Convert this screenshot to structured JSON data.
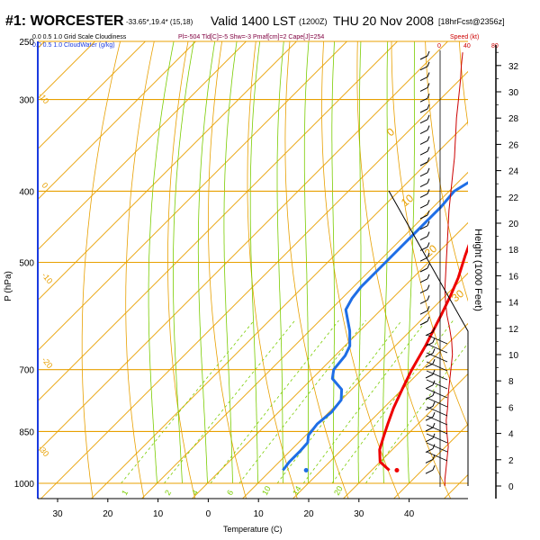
{
  "header": {
    "station": "#1: WORCESTER",
    "coords": "-33.65*,19.4* (15,18)",
    "valid": "Valid 1400 LST",
    "utc": "(1200Z)",
    "date": "THU 20 Nov 2008",
    "forecast": "[18hrFcst@2356z]",
    "cloud_row1": "0.0   0.5   1.0  Grid Scale Cloudiness",
    "cloud_row2": "0.0   0.5   1.0  CloudWater (g/kg)",
    "indices": "Pl=-504 Tld[C]=-5 Shw=-3 Pmaf[cm]=2 Cape[J]=254",
    "speed_title": "Speed (kt)",
    "speed_ticks": [
      "0",
      "40",
      "80"
    ]
  },
  "colors": {
    "isobar": "#e8a000",
    "temperature": "#ee0000",
    "dewpoint": "#1e6ee6",
    "parcel": "#800040",
    "dry_adiabat": "#b8c000",
    "moist_adiabat": "#7acc00",
    "mixing_ratio": "#7acc00",
    "wind_speed": "#cc0000"
  },
  "chart_data": {
    "type": "line",
    "title": "#1: WORCESTER",
    "xlabel": "Temperature (C)",
    "ylabel": "P (hPa)",
    "y2label": "Height (1000 Feet)",
    "x_ticks": [
      "30",
      "20",
      "10",
      "0",
      "10",
      "20",
      "30",
      "40"
    ],
    "p_ticks": [
      250,
      300,
      400,
      500,
      700,
      850,
      1000
    ],
    "height_ticks": [
      "0",
      "2",
      "4",
      "6",
      "8",
      "10",
      "12",
      "14",
      "16",
      "18",
      "20",
      "22",
      "24",
      "26",
      "28",
      "30",
      "32"
    ],
    "xlim": [
      -35,
      48
    ],
    "ylim": [
      1000,
      250
    ],
    "skew_deg": 45,
    "dry_adiabat_labels": [
      "0",
      "10",
      "20",
      "30"
    ],
    "temp_line_labels": [
      "-10",
      "0",
      "-10",
      "-20",
      "-30"
    ],
    "mixing_ratio_labels": [
      "1",
      "2",
      "4",
      "6",
      "10",
      "14",
      "20"
    ],
    "series": [
      {
        "name": "Temperature",
        "points": [
          [
            33.5,
            960
          ],
          [
            30,
            935
          ],
          [
            27.5,
            900
          ],
          [
            25.5,
            860
          ],
          [
            24,
            830
          ],
          [
            22,
            790
          ],
          [
            20,
            745
          ],
          [
            18,
            700
          ],
          [
            16,
            650
          ],
          [
            13,
            590
          ],
          [
            11,
            555
          ],
          [
            9,
            525
          ],
          [
            6,
            490
          ],
          [
            3,
            455
          ],
          [
            0,
            425
          ],
          [
            -3,
            400
          ],
          [
            -7,
            370
          ],
          [
            -11,
            340
          ],
          [
            -15,
            312
          ],
          [
            -19,
            287
          ],
          [
            -23,
            266
          ],
          [
            -25,
            262
          ]
        ]
      },
      {
        "name": "Dewpoint",
        "points": [
          [
            12.4,
            960
          ],
          [
            12,
            935
          ],
          [
            12,
            905
          ],
          [
            11.8,
            880
          ],
          [
            10.5,
            860
          ],
          [
            10,
            830
          ],
          [
            10.5,
            800
          ],
          [
            10,
            770
          ],
          [
            8,
            745
          ],
          [
            4,
            720
          ],
          [
            2.5,
            700
          ],
          [
            2,
            670
          ],
          [
            1,
            650
          ],
          [
            -2,
            620
          ],
          [
            -7,
            580
          ],
          [
            -8,
            560
          ],
          [
            -8.5,
            540
          ],
          [
            -8.5,
            500
          ],
          [
            -8.5,
            470
          ],
          [
            -8.5,
            430
          ],
          [
            -8.5,
            420
          ],
          [
            -9,
            400
          ],
          [
            -7,
            380
          ],
          [
            -3,
            360
          ],
          [
            -0.5,
            340
          ],
          [
            -2.5,
            320
          ],
          [
            -4.5,
            300
          ],
          [
            -6.5,
            280
          ],
          [
            -7,
            262
          ]
        ]
      },
      {
        "name": "Parcel",
        "points": [
          [
            3,
            455
          ],
          [
            0,
            420
          ],
          [
            -5,
            385
          ],
          [
            -9,
            350
          ],
          [
            -13,
            322
          ],
          [
            -17,
            298
          ],
          [
            -21,
            276
          ],
          [
            -24,
            262
          ]
        ]
      }
    ],
    "surface_markers": [
      {
        "name": "Temperature",
        "t": 35,
        "p": 960
      },
      {
        "name": "Dewpoint",
        "t": 17,
        "p": 960
      }
    ],
    "wind_speed_profile": [
      [
        7,
        0
      ],
      [
        7,
        0.5
      ],
      [
        8,
        1
      ],
      [
        10,
        2
      ],
      [
        12,
        3
      ],
      [
        10,
        4
      ],
      [
        9,
        5
      ],
      [
        11,
        6
      ],
      [
        12,
        7
      ],
      [
        14,
        8
      ],
      [
        16,
        9
      ],
      [
        18,
        10
      ],
      [
        17,
        11
      ],
      [
        14,
        12
      ],
      [
        10,
        13
      ],
      [
        8,
        14
      ],
      [
        7,
        15
      ],
      [
        8,
        16
      ],
      [
        9,
        17
      ],
      [
        10,
        18
      ],
      [
        11,
        19
      ],
      [
        12,
        20
      ],
      [
        13,
        21
      ],
      [
        15,
        22
      ],
      [
        17,
        23
      ],
      [
        19,
        24
      ],
      [
        21,
        25
      ],
      [
        22,
        26
      ],
      [
        23,
        27
      ],
      [
        24,
        28
      ],
      [
        26,
        29
      ],
      [
        28,
        30
      ],
      [
        30,
        31
      ],
      [
        31,
        32
      ],
      [
        33,
        33
      ]
    ]
  }
}
